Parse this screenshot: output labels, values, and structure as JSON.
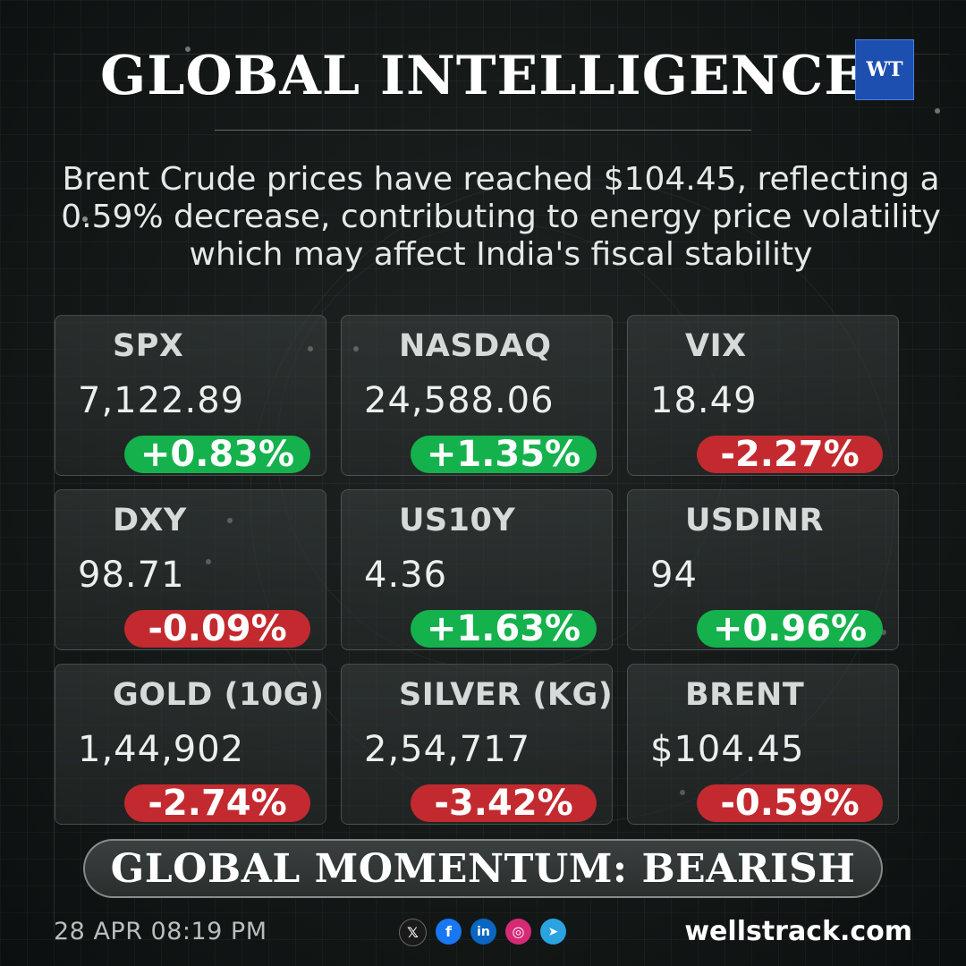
{
  "header": {
    "title": "GLOBAL INTELLIGENCE",
    "logo_text": "WT"
  },
  "headline": "Brent Crude prices have reached $104.45, reflecting a 0.59% decrease, contributing to energy price volatility which may affect India's fiscal stability",
  "cards": [
    {
      "symbol": "SPX",
      "value": "7,122.89",
      "change": "+0.83%",
      "direction": "up"
    },
    {
      "symbol": "NASDAQ",
      "value": "24,588.06",
      "change": "+1.35%",
      "direction": "up"
    },
    {
      "symbol": "VIX",
      "value": "18.49",
      "change": "-2.27%",
      "direction": "down"
    },
    {
      "symbol": "DXY",
      "value": "98.71",
      "change": "-0.09%",
      "direction": "down"
    },
    {
      "symbol": "US10Y",
      "value": "4.36",
      "change": "+1.63%",
      "direction": "up"
    },
    {
      "symbol": "USDINR",
      "value": "94",
      "change": "+0.96%",
      "direction": "up"
    },
    {
      "symbol": "GOLD (10G)",
      "value": "1,44,902",
      "change": "-2.74%",
      "direction": "down"
    },
    {
      "symbol": "SILVER (KG)",
      "value": "2,54,717",
      "change": "-3.42%",
      "direction": "down"
    },
    {
      "symbol": "BRENT",
      "value": "$104.45",
      "change": "-0.59%",
      "direction": "down"
    }
  ],
  "momentum": "GLOBAL MOMENTUM: BEARISH",
  "footer": {
    "datetime": "28 APR 08:19 PM",
    "website": "wellstrack.com",
    "socials": [
      {
        "icon": "x-icon",
        "glyph": "𝕏",
        "color": "#1a1a1a"
      },
      {
        "icon": "facebook-icon",
        "glyph": "f",
        "color": "#1877f2"
      },
      {
        "icon": "linkedin-icon",
        "glyph": "in",
        "color": "#0a66c2"
      },
      {
        "icon": "instagram-icon",
        "glyph": "◎",
        "color": "#d62976"
      },
      {
        "icon": "telegram-icon",
        "glyph": "➤",
        "color": "#2aa3e0"
      }
    ]
  },
  "colors": {
    "positive": "#14b14d",
    "negative": "#c32a2f",
    "logo_bg": "#1d4fb0"
  }
}
